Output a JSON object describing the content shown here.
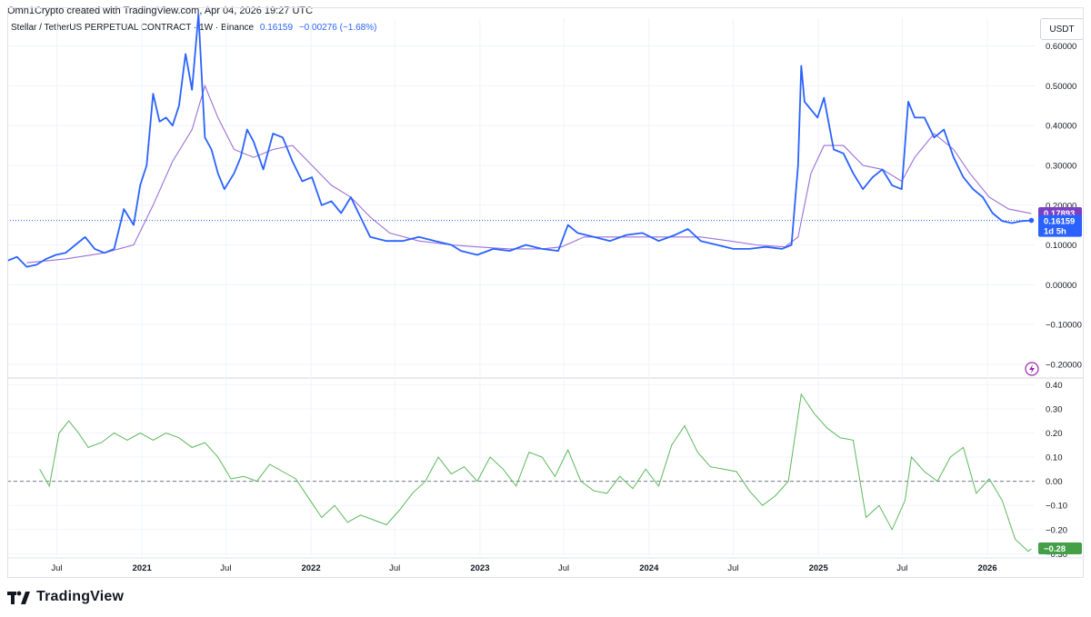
{
  "header": {
    "credit": "Omn1Crypto created with TradingView.com, Apr 04, 2026 19:27 UTC"
  },
  "legend": {
    "symbol": "Stellar / TetherUS PERPETUAL CONTRACT · 1W · Binance",
    "price": "0.16159",
    "change": "−0.00276 (−1.68%)"
  },
  "currency_button": "USDT",
  "price_tags": {
    "ma": {
      "value": "0.17893",
      "color": "#7b3fc4"
    },
    "last": {
      "value": "0.16159",
      "countdown": "1d 5h",
      "color": "#2962ff"
    },
    "osc": {
      "value": "−0.28",
      "color": "#43a047"
    }
  },
  "brand": {
    "name": "TradingView",
    "icon": "tradingview-logo-icon"
  },
  "colors": {
    "price": "#2962ff",
    "ma": "#9c6fd6",
    "osc": "#5cb85c",
    "grid": "#f0f3fa",
    "dotted": "#2962ff"
  },
  "chart_data": [
    {
      "type": "line",
      "panel": "price",
      "ylim": [
        -0.23,
        0.67
      ],
      "yticks": [
        "0.60000",
        "0.50000",
        "0.40000",
        "0.30000",
        "0.20000",
        "0.10000",
        "0.00000",
        "−0.10000",
        "−0.20000"
      ],
      "ytick_values": [
        0.6,
        0.5,
        0.4,
        0.3,
        0.2,
        0.1,
        0.0,
        -0.1,
        -0.2
      ],
      "x_labels": [
        "Jul",
        "2021",
        "Jul",
        "2022",
        "Jul",
        "2023",
        "Jul",
        "2024",
        "Jul",
        "2025",
        "Jul",
        "2026"
      ],
      "x_label_dates": [
        "2020-07-01",
        "2021-01-01",
        "2021-07-01",
        "2022-01-01",
        "2022-07-01",
        "2023-01-01",
        "2023-07-01",
        "2024-01-01",
        "2024-07-01",
        "2025-01-01",
        "2025-07-01",
        "2026-01-01"
      ],
      "xlim": [
        "2020-03-16",
        "2026-04-13"
      ],
      "series": [
        {
          "points": [
            [
              "2020-03-16",
              0.06
            ],
            [
              "2020-04-06",
              0.07
            ],
            [
              "2020-04-27",
              0.045
            ],
            [
              "2020-05-18",
              0.05
            ],
            [
              "2020-06-08",
              0.065
            ],
            [
              "2020-06-29",
              0.075
            ],
            [
              "2020-07-20",
              0.08
            ],
            [
              "2020-08-10",
              0.1
            ],
            [
              "2020-08-31",
              0.12
            ],
            [
              "2020-09-21",
              0.09
            ],
            [
              "2020-10-12",
              0.08
            ],
            [
              "2020-11-02",
              0.09
            ],
            [
              "2020-11-23",
              0.19
            ],
            [
              "2020-12-14",
              0.15
            ],
            [
              "2020-12-28",
              0.25
            ],
            [
              "2021-01-11",
              0.3
            ],
            [
              "2021-01-25",
              0.48
            ],
            [
              "2021-02-08",
              0.41
            ],
            [
              "2021-02-22",
              0.42
            ],
            [
              "2021-03-08",
              0.4
            ],
            [
              "2021-03-22",
              0.45
            ],
            [
              "2021-04-05",
              0.58
            ],
            [
              "2021-04-19",
              0.49
            ],
            [
              "2021-05-03",
              0.68
            ],
            [
              "2021-05-17",
              0.37
            ],
            [
              "2021-05-31",
              0.34
            ],
            [
              "2021-06-14",
              0.28
            ],
            [
              "2021-06-28",
              0.24
            ],
            [
              "2021-07-19",
              0.28
            ],
            [
              "2021-08-02",
              0.32
            ],
            [
              "2021-08-16",
              0.39
            ],
            [
              "2021-08-30",
              0.36
            ],
            [
              "2021-09-20",
              0.29
            ],
            [
              "2021-10-11",
              0.38
            ],
            [
              "2021-11-01",
              0.37
            ],
            [
              "2021-11-22",
              0.31
            ],
            [
              "2021-12-13",
              0.26
            ],
            [
              "2022-01-03",
              0.27
            ],
            [
              "2022-01-24",
              0.2
            ],
            [
              "2022-02-14",
              0.21
            ],
            [
              "2022-03-07",
              0.18
            ],
            [
              "2022-03-28",
              0.22
            ],
            [
              "2022-04-18",
              0.17
            ],
            [
              "2022-05-09",
              0.12
            ],
            [
              "2022-06-13",
              0.11
            ],
            [
              "2022-07-18",
              0.11
            ],
            [
              "2022-08-22",
              0.12
            ],
            [
              "2022-09-26",
              0.11
            ],
            [
              "2022-10-31",
              0.1
            ],
            [
              "2022-11-21",
              0.085
            ],
            [
              "2022-12-26",
              0.075
            ],
            [
              "2023-01-30",
              0.09
            ],
            [
              "2023-03-06",
              0.085
            ],
            [
              "2023-04-10",
              0.1
            ],
            [
              "2023-05-15",
              0.09
            ],
            [
              "2023-06-19",
              0.085
            ],
            [
              "2023-07-10",
              0.15
            ],
            [
              "2023-07-31",
              0.13
            ],
            [
              "2023-09-04",
              0.12
            ],
            [
              "2023-10-09",
              0.11
            ],
            [
              "2023-11-13",
              0.125
            ],
            [
              "2023-12-18",
              0.13
            ],
            [
              "2024-01-22",
              0.11
            ],
            [
              "2024-02-26",
              0.125
            ],
            [
              "2024-03-25",
              0.14
            ],
            [
              "2024-04-22",
              0.11
            ],
            [
              "2024-05-27",
              0.1
            ],
            [
              "2024-07-01",
              0.09
            ],
            [
              "2024-08-05",
              0.09
            ],
            [
              "2024-09-09",
              0.095
            ],
            [
              "2024-10-14",
              0.09
            ],
            [
              "2024-11-04",
              0.1
            ],
            [
              "2024-11-18",
              0.3
            ],
            [
              "2024-11-25",
              0.55
            ],
            [
              "2024-12-02",
              0.46
            ],
            [
              "2024-12-16",
              0.44
            ],
            [
              "2024-12-30",
              0.42
            ],
            [
              "2025-01-13",
              0.47
            ],
            [
              "2025-02-03",
              0.34
            ],
            [
              "2025-02-24",
              0.33
            ],
            [
              "2025-03-17",
              0.28
            ],
            [
              "2025-04-07",
              0.24
            ],
            [
              "2025-04-28",
              0.27
            ],
            [
              "2025-05-19",
              0.29
            ],
            [
              "2025-06-09",
              0.25
            ],
            [
              "2025-06-30",
              0.24
            ],
            [
              "2025-07-14",
              0.46
            ],
            [
              "2025-07-28",
              0.42
            ],
            [
              "2025-08-18",
              0.42
            ],
            [
              "2025-09-08",
              0.37
            ],
            [
              "2025-09-29",
              0.39
            ],
            [
              "2025-10-20",
              0.32
            ],
            [
              "2025-11-10",
              0.27
            ],
            [
              "2025-12-01",
              0.24
            ],
            [
              "2025-12-22",
              0.22
            ],
            [
              "2026-01-12",
              0.18
            ],
            [
              "2026-02-02",
              0.16
            ],
            [
              "2026-02-23",
              0.155
            ],
            [
              "2026-03-16",
              0.16
            ],
            [
              "2026-04-06",
              0.1616
            ]
          ]
        },
        {
          "points": [
            [
              "2020-04-27",
              0.055
            ],
            [
              "2020-07-20",
              0.065
            ],
            [
              "2020-10-12",
              0.08
            ],
            [
              "2020-12-14",
              0.1
            ],
            [
              "2021-01-25",
              0.2
            ],
            [
              "2021-03-08",
              0.31
            ],
            [
              "2021-04-19",
              0.39
            ],
            [
              "2021-05-17",
              0.5
            ],
            [
              "2021-06-14",
              0.42
            ],
            [
              "2021-07-19",
              0.34
            ],
            [
              "2021-08-30",
              0.32
            ],
            [
              "2021-10-11",
              0.34
            ],
            [
              "2021-11-22",
              0.35
            ],
            [
              "2022-01-03",
              0.3
            ],
            [
              "2022-02-14",
              0.25
            ],
            [
              "2022-03-28",
              0.22
            ],
            [
              "2022-05-09",
              0.17
            ],
            [
              "2022-06-20",
              0.13
            ],
            [
              "2022-08-22",
              0.11
            ],
            [
              "2022-10-31",
              0.1
            ],
            [
              "2022-12-26",
              0.095
            ],
            [
              "2023-03-06",
              0.09
            ],
            [
              "2023-05-15",
              0.09
            ],
            [
              "2023-06-26",
              0.095
            ],
            [
              "2023-08-14",
              0.12
            ],
            [
              "2023-10-09",
              0.12
            ],
            [
              "2023-12-18",
              0.12
            ],
            [
              "2024-02-26",
              0.12
            ],
            [
              "2024-04-22",
              0.12
            ],
            [
              "2024-06-24",
              0.11
            ],
            [
              "2024-08-19",
              0.1
            ],
            [
              "2024-10-21",
              0.095
            ],
            [
              "2024-11-18",
              0.12
            ],
            [
              "2024-12-16",
              0.28
            ],
            [
              "2025-01-13",
              0.35
            ],
            [
              "2025-02-24",
              0.35
            ],
            [
              "2025-04-07",
              0.3
            ],
            [
              "2025-05-19",
              0.29
            ],
            [
              "2025-06-30",
              0.26
            ],
            [
              "2025-07-28",
              0.32
            ],
            [
              "2025-09-08",
              0.38
            ],
            [
              "2025-10-20",
              0.34
            ],
            [
              "2025-11-24",
              0.28
            ],
            [
              "2026-01-05",
              0.22
            ],
            [
              "2026-02-16",
              0.19
            ],
            [
              "2026-04-06",
              0.179
            ]
          ]
        }
      ]
    },
    {
      "type": "line",
      "panel": "oscillator",
      "ylim": [
        -0.31,
        0.42
      ],
      "yticks": [
        "0.40",
        "0.30",
        "0.20",
        "0.10",
        "0.00",
        "−0.10",
        "−0.20",
        "−0.30"
      ],
      "ytick_values": [
        0.4,
        0.3,
        0.2,
        0.1,
        0.0,
        -0.1,
        -0.2,
        -0.3
      ],
      "zero_line": 0,
      "series": [
        {
          "points": [
            [
              "2020-05-25",
              0.05
            ],
            [
              "2020-06-15",
              -0.02
            ],
            [
              "2020-07-06",
              0.2
            ],
            [
              "2020-07-27",
              0.25
            ],
            [
              "2020-08-17",
              0.2
            ],
            [
              "2020-09-07",
              0.14
            ],
            [
              "2020-10-05",
              0.16
            ],
            [
              "2020-11-02",
              0.2
            ],
            [
              "2020-11-30",
              0.17
            ],
            [
              "2020-12-28",
              0.2
            ],
            [
              "2021-01-25",
              0.17
            ],
            [
              "2021-02-22",
              0.2
            ],
            [
              "2021-03-22",
              0.18
            ],
            [
              "2021-04-19",
              0.14
            ],
            [
              "2021-05-17",
              0.16
            ],
            [
              "2021-06-14",
              0.1
            ],
            [
              "2021-07-12",
              0.01
            ],
            [
              "2021-08-09",
              0.02
            ],
            [
              "2021-09-06",
              0.0
            ],
            [
              "2021-10-04",
              0.07
            ],
            [
              "2021-11-01",
              0.04
            ],
            [
              "2021-11-29",
              0.01
            ],
            [
              "2021-12-27",
              -0.07
            ],
            [
              "2022-01-24",
              -0.15
            ],
            [
              "2022-02-21",
              -0.1
            ],
            [
              "2022-03-21",
              -0.17
            ],
            [
              "2022-04-18",
              -0.14
            ],
            [
              "2022-05-16",
              -0.16
            ],
            [
              "2022-06-13",
              -0.18
            ],
            [
              "2022-07-11",
              -0.12
            ],
            [
              "2022-08-08",
              -0.05
            ],
            [
              "2022-09-05",
              0.0
            ],
            [
              "2022-10-03",
              0.1
            ],
            [
              "2022-10-31",
              0.03
            ],
            [
              "2022-11-28",
              0.06
            ],
            [
              "2022-12-26",
              0.0
            ],
            [
              "2023-01-23",
              0.1
            ],
            [
              "2023-02-20",
              0.05
            ],
            [
              "2023-03-20",
              -0.02
            ],
            [
              "2023-04-17",
              0.12
            ],
            [
              "2023-05-15",
              0.1
            ],
            [
              "2023-06-12",
              0.02
            ],
            [
              "2023-07-10",
              0.13
            ],
            [
              "2023-08-07",
              0.0
            ],
            [
              "2023-09-04",
              -0.04
            ],
            [
              "2023-10-02",
              -0.05
            ],
            [
              "2023-10-30",
              0.02
            ],
            [
              "2023-11-27",
              -0.03
            ],
            [
              "2023-12-25",
              0.05
            ],
            [
              "2024-01-22",
              -0.02
            ],
            [
              "2024-02-19",
              0.15
            ],
            [
              "2024-03-18",
              0.23
            ],
            [
              "2024-04-15",
              0.12
            ],
            [
              "2024-05-13",
              0.06
            ],
            [
              "2024-06-10",
              0.05
            ],
            [
              "2024-07-08",
              0.04
            ],
            [
              "2024-08-05",
              -0.04
            ],
            [
              "2024-09-02",
              -0.1
            ],
            [
              "2024-09-30",
              -0.06
            ],
            [
              "2024-10-28",
              0.0
            ],
            [
              "2024-11-25",
              0.36
            ],
            [
              "2024-12-23",
              0.28
            ],
            [
              "2025-01-20",
              0.22
            ],
            [
              "2025-02-17",
              0.18
            ],
            [
              "2025-03-17",
              0.17
            ],
            [
              "2025-04-14",
              -0.15
            ],
            [
              "2025-05-12",
              -0.1
            ],
            [
              "2025-06-09",
              -0.2
            ],
            [
              "2025-07-07",
              -0.08
            ],
            [
              "2025-07-21",
              0.1
            ],
            [
              "2025-08-18",
              0.04
            ],
            [
              "2025-09-15",
              0.0
            ],
            [
              "2025-10-13",
              0.1
            ],
            [
              "2025-11-10",
              0.14
            ],
            [
              "2025-12-08",
              -0.05
            ],
            [
              "2026-01-05",
              0.01
            ],
            [
              "2026-02-02",
              -0.08
            ],
            [
              "2026-03-02",
              -0.24
            ],
            [
              "2026-03-30",
              -0.29
            ],
            [
              "2026-04-06",
              -0.28
            ]
          ]
        }
      ]
    }
  ]
}
